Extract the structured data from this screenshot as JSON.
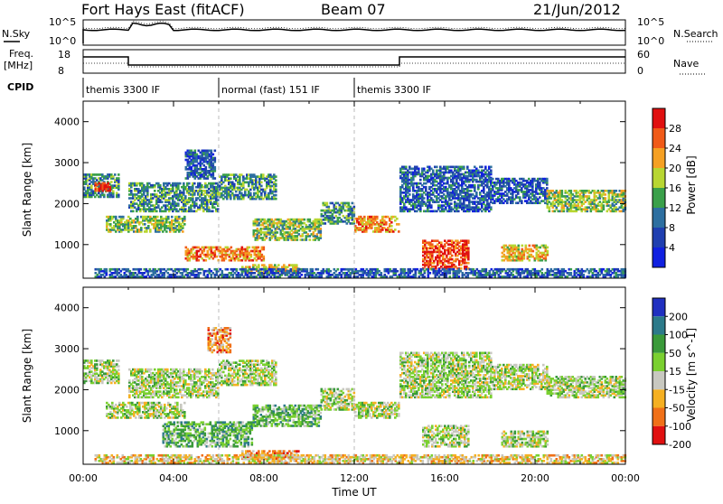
{
  "header": {
    "site": "Fort Hays East (fitACF)",
    "beam": "Beam 07",
    "date": "21/Jun/2012"
  },
  "noise_panel": {
    "left_label": "N.Sky",
    "right_label": "N.Search",
    "left_ticks": [
      "10^5",
      "10^0"
    ],
    "right_ticks": [
      "10^5",
      "10^0"
    ]
  },
  "freq_panel": {
    "left_label_1": "Freq.",
    "left_label_2": "[MHz]",
    "right_label": "Nave",
    "left_ticks": [
      "18",
      "8"
    ],
    "right_ticks": [
      "60",
      "0"
    ]
  },
  "cpid": {
    "label": "CPID",
    "segments": [
      {
        "start_hour": 0,
        "text": "themis 3300 IF"
      },
      {
        "start_hour": 6,
        "text": "normal (fast) 151 IF"
      },
      {
        "start_hour": 12,
        "text": "themis 3300 IF"
      }
    ]
  },
  "chart_data": [
    {
      "type": "heatmap",
      "name": "power",
      "ylabel": "Slant Range [km]",
      "xlim_hours": [
        0,
        24
      ],
      "ylim": [
        180,
        4500
      ],
      "yticks": [
        1000,
        2000,
        3000,
        4000
      ],
      "colorbar": {
        "label": "Power [dB]",
        "ticks": [
          "28",
          "24",
          "20",
          "16",
          "12",
          "8",
          "4"
        ],
        "colors": [
          "#e01010",
          "#f05a18",
          "#f5a023",
          "#b8d632",
          "#3aa04a",
          "#2d6fa0",
          "#1f3fb0",
          "#1020e0"
        ]
      },
      "regions": [
        {
          "hours": [
            0.0,
            1.6
          ],
          "range_km": [
            2150,
            2700
          ],
          "level": 5
        },
        {
          "hours": [
            0.5,
            1.2
          ],
          "range_km": [
            2300,
            2500
          ],
          "level": 1
        },
        {
          "hours": [
            1.0,
            4.5
          ],
          "range_km": [
            1300,
            1700
          ],
          "level": 4
        },
        {
          "hours": [
            2.0,
            6.0
          ],
          "range_km": [
            1800,
            2500
          ],
          "level": 5
        },
        {
          "hours": [
            4.5,
            5.8
          ],
          "range_km": [
            2600,
            3300
          ],
          "level": 6
        },
        {
          "hours": [
            4.5,
            8.0
          ],
          "range_km": [
            600,
            950
          ],
          "level": 2
        },
        {
          "hours": [
            6.0,
            8.5
          ],
          "range_km": [
            2100,
            2700
          ],
          "level": 5
        },
        {
          "hours": [
            7.0,
            9.5
          ],
          "range_km": [
            300,
            500
          ],
          "level": 3
        },
        {
          "hours": [
            7.5,
            10.5
          ],
          "range_km": [
            1100,
            1600
          ],
          "level": 4
        },
        {
          "hours": [
            10.5,
            12.0
          ],
          "range_km": [
            1500,
            2000
          ],
          "level": 5
        },
        {
          "hours": [
            12.0,
            14.0
          ],
          "range_km": [
            1300,
            1700
          ],
          "level": 2
        },
        {
          "hours": [
            14.0,
            18.0
          ],
          "range_km": [
            1800,
            2900
          ],
          "level": 6
        },
        {
          "hours": [
            15.0,
            17.0
          ],
          "range_km": [
            400,
            1100
          ],
          "level": 1
        },
        {
          "hours": [
            18.0,
            20.5
          ],
          "range_km": [
            2000,
            2600
          ],
          "level": 6
        },
        {
          "hours": [
            20.5,
            24.0
          ],
          "range_km": [
            1800,
            2300
          ],
          "level": 4
        },
        {
          "hours": [
            18.5,
            20.5
          ],
          "range_km": [
            600,
            1000
          ],
          "level": 3
        },
        {
          "hours": [
            0.5,
            24.0
          ],
          "range_km": [
            200,
            400
          ],
          "level": 6
        }
      ]
    },
    {
      "type": "heatmap",
      "name": "velocity",
      "ylabel": "Slant Range [km]",
      "xlabel": "Time UT",
      "xticks": [
        "00:00",
        "04:00",
        "08:00",
        "12:00",
        "16:00",
        "20:00",
        "00:00"
      ],
      "xlim_hours": [
        0,
        24
      ],
      "ylim": [
        180,
        4500
      ],
      "yticks": [
        1000,
        2000,
        3000,
        4000
      ],
      "colorbar": {
        "label": "Velocity [m s^-1]",
        "ticks": [
          "200",
          "100",
          "50",
          "15",
          "-15",
          "-50",
          "-100",
          "-200"
        ],
        "colors": [
          "#2030c0",
          "#2c7a8a",
          "#3a9a3a",
          "#7ad030",
          "#c8c8c0",
          "#f5b022",
          "#f07018",
          "#e01010"
        ]
      },
      "regions": [
        {
          "hours": [
            0.0,
            1.6
          ],
          "range_km": [
            2150,
            2700
          ],
          "level": 4
        },
        {
          "hours": [
            1.0,
            4.5
          ],
          "range_km": [
            1300,
            1700
          ],
          "level": 4
        },
        {
          "hours": [
            2.0,
            6.0
          ],
          "range_km": [
            1800,
            2500
          ],
          "level": 4
        },
        {
          "hours": [
            5.5,
            6.5
          ],
          "range_km": [
            2900,
            3500
          ],
          "level": 6
        },
        {
          "hours": [
            3.5,
            7.5
          ],
          "range_km": [
            600,
            1200
          ],
          "level": 3
        },
        {
          "hours": [
            6.0,
            8.5
          ],
          "range_km": [
            2100,
            2700
          ],
          "level": 4
        },
        {
          "hours": [
            7.0,
            9.5
          ],
          "range_km": [
            300,
            500
          ],
          "level": 6
        },
        {
          "hours": [
            7.5,
            10.5
          ],
          "range_km": [
            1100,
            1600
          ],
          "level": 3
        },
        {
          "hours": [
            10.5,
            12.0
          ],
          "range_km": [
            1500,
            2000
          ],
          "level": 4
        },
        {
          "hours": [
            12.0,
            14.0
          ],
          "range_km": [
            1300,
            1700
          ],
          "level": 4
        },
        {
          "hours": [
            14.0,
            18.0
          ],
          "range_km": [
            1800,
            2900
          ],
          "level": 4
        },
        {
          "hours": [
            15.0,
            17.0
          ],
          "range_km": [
            600,
            1100
          ],
          "level": 4
        },
        {
          "hours": [
            18.0,
            20.5
          ],
          "range_km": [
            2000,
            2600
          ],
          "level": 4
        },
        {
          "hours": [
            20.5,
            24.0
          ],
          "range_km": [
            1800,
            2300
          ],
          "level": 4
        },
        {
          "hours": [
            18.5,
            20.5
          ],
          "range_km": [
            600,
            1000
          ],
          "level": 4
        },
        {
          "hours": [
            0.5,
            24.0
          ],
          "range_km": [
            200,
            400
          ],
          "level": 5
        }
      ]
    }
  ]
}
